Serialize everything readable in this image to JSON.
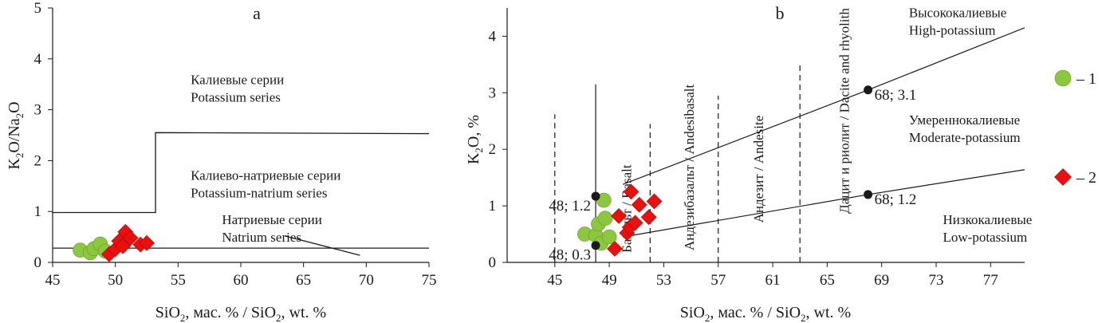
{
  "chart_data": [
    {
      "type": "scatter",
      "panel": "a",
      "xlabel": "SiO₂, мас. % / SiO₂, wt. %",
      "ylabel": "K₂O/Na₂O",
      "xlim": [
        45,
        75
      ],
      "ylim": [
        0,
        5
      ],
      "xticks": [
        45,
        50,
        55,
        60,
        65,
        70,
        75
      ],
      "yticks": [
        0,
        1,
        2,
        3,
        4,
        5
      ],
      "boundaries": [
        {
          "points": [
            [
              45,
              0.98
            ],
            [
              53.2,
              0.98
            ],
            [
              53.2,
              2.55
            ],
            [
              75,
              2.53
            ]
          ]
        },
        {
          "points": [
            [
              45,
              0.28
            ],
            [
              75,
              0.28
            ]
          ]
        },
        {
          "points": [
            [
              63.5,
              0.52
            ],
            [
              69.5,
              0.14
            ]
          ]
        }
      ],
      "fields": [
        {
          "lines": [
            "Калиевые серии",
            "Potassium series"
          ],
          "x": 56,
          "y": 3.5
        },
        {
          "lines": [
            "Калиево-натриевые серии",
            "Potassium-natrium series"
          ],
          "x": 56,
          "y": 1.62
        },
        {
          "lines": [
            "Натриевые серии",
            "Natrium series"
          ],
          "x": 58.5,
          "y": 0.75
        }
      ],
      "series": [
        {
          "marker": "circle",
          "color": "#8dc63f",
          "points": [
            [
              47.2,
              0.24
            ],
            [
              48.0,
              0.19
            ],
            [
              48.3,
              0.27
            ],
            [
              48.8,
              0.36
            ],
            [
              49.2,
              0.22
            ]
          ]
        },
        {
          "marker": "diamond",
          "color": "#e8110f",
          "points": [
            [
              49.5,
              0.16
            ],
            [
              50.0,
              0.26
            ],
            [
              50.3,
              0.42
            ],
            [
              50.6,
              0.32
            ],
            [
              50.8,
              0.6
            ],
            [
              51.2,
              0.48
            ],
            [
              52.0,
              0.35
            ],
            [
              52.5,
              0.38
            ]
          ]
        }
      ]
    },
    {
      "type": "scatter",
      "panel": "b",
      "xlabel": "SiO₂, мас. % / SiO₂, wt. %",
      "ylabel": "K₂O, %",
      "xlim": [
        41.5,
        79.5
      ],
      "ylim": [
        0,
        4.5
      ],
      "xticks": [
        45,
        49,
        53,
        57,
        61,
        65,
        69,
        73,
        77
      ],
      "yticks": [
        0,
        1,
        2,
        3,
        4
      ],
      "dashed_lines": [
        {
          "x": 45,
          "y0": 0,
          "y1": 2.62
        },
        {
          "x": 52,
          "y0": 0,
          "y1": 2.45
        },
        {
          "x": 57,
          "y0": 0,
          "y1": 2.95
        },
        {
          "x": 63,
          "y0": 0,
          "y1": 3.52
        }
      ],
      "solid_lines": [
        {
          "points": [
            [
              48,
              0
            ],
            [
              48,
              3.15
            ]
          ]
        },
        {
          "points": [
            [
              50,
              1.38
            ],
            [
              68,
              3.05
            ],
            [
              79.5,
              4.15
            ]
          ]
        },
        {
          "points": [
            [
              50,
              0.45
            ],
            [
              68,
              1.2
            ],
            [
              79.5,
              1.64
            ]
          ]
        }
      ],
      "reference_points": [
        {
          "x": 48,
          "y": 1.17,
          "label": "48; 1.2"
        },
        {
          "x": 48,
          "y": 0.3,
          "label": "48; 0.3"
        },
        {
          "x": 68,
          "y": 3.05,
          "label": "68; 3.1"
        },
        {
          "x": 68,
          "y": 1.2,
          "label": "68; 1.2"
        }
      ],
      "rock_labels": [
        {
          "text": "Базальт / Basalt",
          "x": 50.6,
          "y": 0.95
        },
        {
          "text": "Андезибазальт / Andesibasalt",
          "x": 55.2,
          "y": 1.68
        },
        {
          "text": "Андезит / Andesite",
          "x": 60.3,
          "y": 1.65
        },
        {
          "text": "Дацит и риолит / Dacite and rhyolith",
          "x": 66.6,
          "y": 2.68
        }
      ],
      "fields": [
        {
          "lines": [
            "Высококалиевые",
            "High-potassium"
          ],
          "x": 71,
          "y": 4.34
        },
        {
          "lines": [
            "Умереннокалиевые",
            "Moderate-potassium"
          ],
          "x": 71,
          "y": 2.44
        },
        {
          "lines": [
            "Низкокалиевые",
            "Low-potassium"
          ],
          "x": 73.5,
          "y": 0.68
        }
      ],
      "series": [
        {
          "marker": "circle",
          "color": "#8dc63f",
          "points": [
            [
              47.2,
              0.5
            ],
            [
              48.0,
              0.48
            ],
            [
              48.2,
              0.68
            ],
            [
              48.4,
              0.34
            ],
            [
              48.6,
              1.1
            ],
            [
              48.7,
              0.78
            ],
            [
              49.0,
              0.45
            ]
          ]
        },
        {
          "marker": "diamond",
          "color": "#e8110f",
          "points": [
            [
              49.4,
              0.24
            ],
            [
              49.7,
              0.82
            ],
            [
              50.3,
              0.52
            ],
            [
              50.5,
              0.62
            ],
            [
              50.6,
              1.25
            ],
            [
              50.9,
              0.7
            ],
            [
              51.2,
              1.02
            ],
            [
              51.9,
              0.8
            ],
            [
              52.3,
              1.08
            ]
          ]
        }
      ]
    }
  ],
  "panels": {
    "a": {
      "letter": "a"
    },
    "b": {
      "letter": "b"
    }
  },
  "legend": [
    {
      "marker": "circle",
      "color": "#8dc63f",
      "label": "– 1"
    },
    {
      "marker": "diamond",
      "color": "#e8110f",
      "label": "– 2"
    }
  ]
}
